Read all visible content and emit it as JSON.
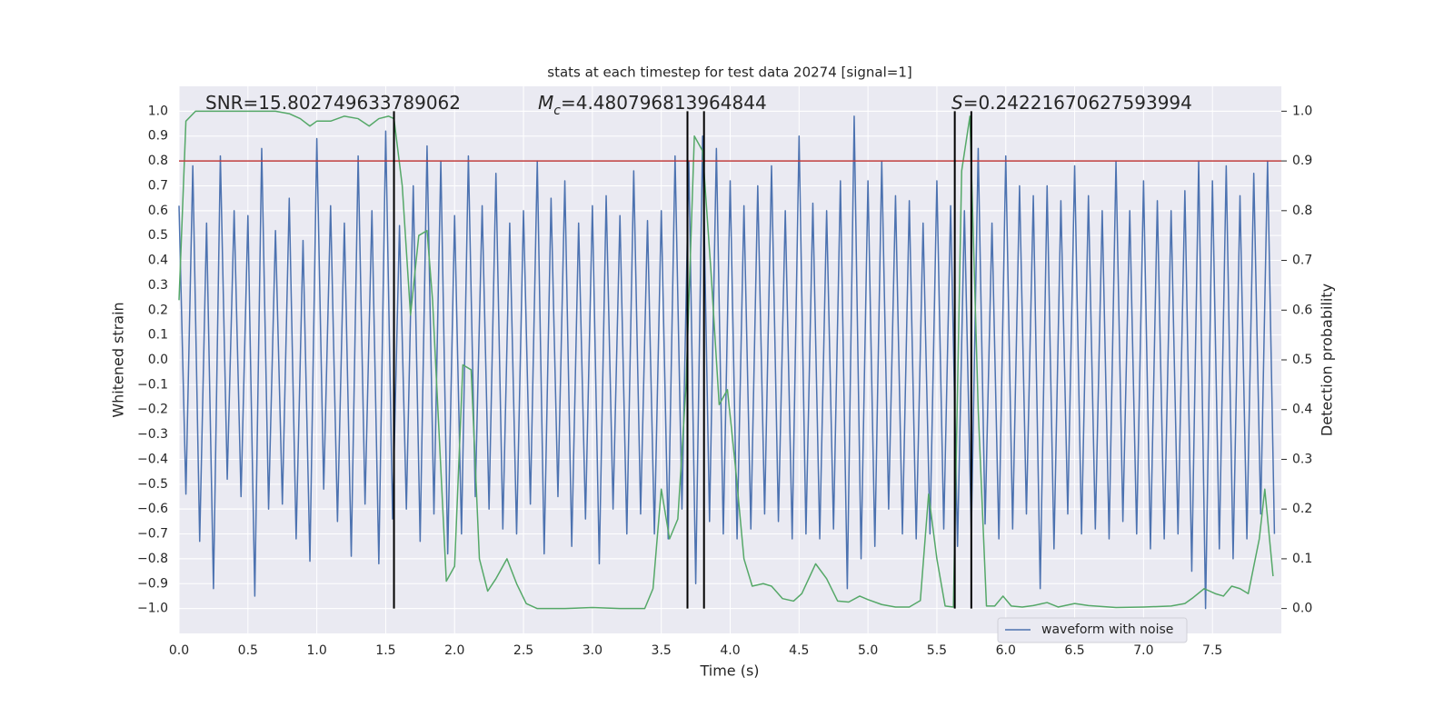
{
  "chart_data": {
    "type": "line",
    "title": "stats at each timestep for test data 20274 [signal=1]",
    "xlabel": "Time (s)",
    "ylabel": "Whitened strain",
    "y2label": "Detection probability",
    "annotations": [
      {
        "text": "SNR=15.802749633789062"
      },
      {
        "symbol": "M",
        "sub": "c",
        "text": "=4.480796813964844"
      },
      {
        "symbol": "S",
        "text": "=0.24221670627593994"
      }
    ],
    "xlim": [
      0,
      8.0
    ],
    "xticks": [
      {
        "value": 0,
        "label": "0.0"
      },
      0.5,
      {
        "value": 1,
        "label": "1.0"
      },
      1.5,
      {
        "value": 2,
        "label": "2.0"
      },
      2.5,
      {
        "value": 3,
        "label": "3.0"
      },
      3.5,
      {
        "value": 4,
        "label": "4.0"
      },
      4.5,
      {
        "value": 5,
        "label": "5.0"
      },
      5.5,
      {
        "value": 6,
        "label": "6.0"
      },
      6.5,
      {
        "value": 7,
        "label": "7.0"
      },
      7.5
    ],
    "ylim": [
      -1.1,
      1.1
    ],
    "yticks": [
      {
        "value": -1.0,
        "label": "−1.0"
      },
      {
        "value": -0.9,
        "label": "−0.9"
      },
      {
        "value": -0.8,
        "label": "−0.8"
      },
      {
        "value": -0.7,
        "label": "−0.7"
      },
      {
        "value": -0.6,
        "label": "−0.6"
      },
      {
        "value": -0.5,
        "label": "−0.5"
      },
      {
        "value": -0.4,
        "label": "−0.4"
      },
      {
        "value": -0.3,
        "label": "−0.3"
      },
      {
        "value": -0.2,
        "label": "−0.2"
      },
      {
        "value": -0.1,
        "label": "−0.1"
      },
      {
        "value": 0,
        "label": "0.0"
      },
      0.1,
      0.2,
      0.3,
      0.4,
      0.5,
      0.6,
      0.7,
      0.8,
      0.9,
      {
        "value": 1.0,
        "label": "1.0"
      }
    ],
    "y2lim": [
      -0.05,
      1.05
    ],
    "y2ticks": [
      {
        "value": 0,
        "label": "0.0"
      },
      0.1,
      0.2,
      0.3,
      0.4,
      0.5,
      0.6,
      0.7,
      0.8,
      0.9,
      {
        "value": 1.0,
        "label": "1.0"
      }
    ],
    "grid": true,
    "legend": "lower right",
    "series": [
      {
        "name": "waveform with noise",
        "color": "#4c72b0",
        "x": [
          0,
          0.05,
          0.1,
          0.15,
          0.2,
          0.25,
          0.3,
          0.35,
          0.4,
          0.45,
          0.5,
          0.55,
          0.6,
          0.65,
          0.7,
          0.75,
          0.8,
          0.85,
          0.9,
          0.95,
          1,
          1.05,
          1.1,
          1.15,
          1.2,
          1.25,
          1.3,
          1.35,
          1.4,
          1.45,
          1.5,
          1.55,
          1.6,
          1.65,
          1.7,
          1.75,
          1.8,
          1.85,
          1.9,
          1.95,
          2,
          2.05,
          2.1,
          2.15,
          2.2,
          2.25,
          2.3,
          2.35,
          2.4,
          2.45,
          2.5,
          2.55,
          2.6,
          2.65,
          2.7,
          2.75,
          2.8,
          2.85,
          2.9,
          2.95,
          3,
          3.05,
          3.1,
          3.15,
          3.2,
          3.25,
          3.3,
          3.35,
          3.4,
          3.45,
          3.5,
          3.55,
          3.6,
          3.65,
          3.7,
          3.75,
          3.8,
          3.85,
          3.9,
          3.95,
          4,
          4.05,
          4.1,
          4.15,
          4.2,
          4.25,
          4.3,
          4.35,
          4.4,
          4.45,
          4.5,
          4.55,
          4.6,
          4.65,
          4.7,
          4.75,
          4.8,
          4.85,
          4.9,
          4.95,
          5,
          5.05,
          5.1,
          5.15,
          5.2,
          5.25,
          5.3,
          5.35,
          5.4,
          5.45,
          5.5,
          5.55,
          5.6,
          5.65,
          5.7,
          5.75,
          5.8,
          5.85,
          5.9,
          5.95,
          6,
          6.05,
          6.1,
          6.15,
          6.2,
          6.25,
          6.3,
          6.35,
          6.4,
          6.45,
          6.5,
          6.55,
          6.6,
          6.65,
          6.7,
          6.75,
          6.8,
          6.85,
          6.9,
          6.95,
          7,
          7.05,
          7.1,
          7.15,
          7.2,
          7.25,
          7.3,
          7.35,
          7.4,
          7.45,
          7.5,
          7.55,
          7.6,
          7.65,
          7.7,
          7.75,
          7.8,
          7.85,
          7.9,
          7.95
        ],
        "values": [
          0.62,
          -0.54,
          0.78,
          -0.73,
          0.55,
          -0.92,
          0.82,
          -0.48,
          0.6,
          -0.55,
          0.58,
          -0.95,
          0.85,
          -0.6,
          0.52,
          -0.58,
          0.65,
          -0.72,
          0.48,
          -0.81,
          0.89,
          -0.52,
          0.62,
          -0.65,
          0.55,
          -0.79,
          0.82,
          -0.58,
          0.6,
          -0.82,
          0.92,
          -0.64,
          0.54,
          -0.6,
          0.7,
          -0.73,
          0.86,
          -0.62,
          0.8,
          -0.78,
          0.58,
          -0.7,
          0.82,
          -0.55,
          0.62,
          -0.6,
          0.75,
          -0.68,
          0.55,
          -0.7,
          0.6,
          -0.58,
          0.8,
          -0.78,
          0.65,
          -0.55,
          0.72,
          -0.75,
          0.55,
          -0.64,
          0.62,
          -0.82,
          0.66,
          -0.6,
          0.58,
          -0.7,
          0.76,
          -0.62,
          0.56,
          -0.7,
          0.6,
          -0.72,
          0.82,
          -0.6,
          0.8,
          -0.9,
          0.9,
          -0.65,
          0.85,
          -0.7,
          0.72,
          -0.72,
          0.62,
          -0.68,
          0.7,
          -0.62,
          0.78,
          -0.65,
          0.6,
          -0.72,
          0.9,
          -0.7,
          0.63,
          -0.72,
          0.6,
          -0.68,
          0.72,
          -0.92,
          0.98,
          -0.8,
          0.72,
          -0.75,
          0.8,
          -0.6,
          0.66,
          -0.7,
          0.64,
          -0.72,
          0.55,
          -0.7,
          0.72,
          -0.68,
          0.62,
          -0.75,
          0.6,
          -0.7,
          0.85,
          -0.66,
          0.55,
          -0.72,
          0.82,
          -0.68,
          0.7,
          -0.62,
          0.66,
          -0.92,
          0.7,
          -0.76,
          0.64,
          -0.62,
          0.78,
          -0.7,
          0.66,
          -0.68,
          0.6,
          -0.72,
          0.8,
          -0.65,
          0.6,
          -0.7,
          0.72,
          -0.76,
          0.64,
          -0.72,
          0.6,
          -0.7,
          0.68,
          -0.85,
          0.8,
          -1.0,
          0.72,
          -0.76,
          0.78,
          -0.8,
          0.66,
          -0.72,
          0.75,
          -0.62,
          0.8,
          -0.7
        ]
      },
      {
        "color": "#55a868",
        "axis": "y2",
        "x": [
          0,
          0.05,
          0.12,
          0.3,
          0.5,
          0.7,
          0.8,
          0.88,
          0.95,
          1.0,
          1.1,
          1.2,
          1.3,
          1.38,
          1.45,
          1.52,
          1.56,
          1.62,
          1.68,
          1.74,
          1.8,
          1.84,
          1.94,
          2.0,
          2.06,
          2.12,
          2.18,
          2.24,
          2.3,
          2.38,
          2.45,
          2.52,
          2.6,
          2.8,
          3.0,
          3.2,
          3.38,
          3.44,
          3.5,
          3.56,
          3.62,
          3.68,
          3.74,
          3.8,
          3.86,
          3.92,
          3.98,
          4.04,
          4.1,
          4.16,
          4.24,
          4.3,
          4.38,
          4.46,
          4.52,
          4.62,
          4.7,
          4.78,
          4.86,
          4.94,
          5.0,
          5.1,
          5.2,
          5.3,
          5.38,
          5.44,
          5.5,
          5.56,
          5.62,
          5.68,
          5.74,
          5.8,
          5.86,
          5.92,
          5.98,
          6.04,
          6.12,
          6.2,
          6.3,
          6.38,
          6.5,
          6.6,
          6.8,
          7.0,
          7.2,
          7.3,
          7.36,
          7.44,
          7.52,
          7.58,
          7.64,
          7.7,
          7.76,
          7.84,
          7.88,
          7.94
        ],
        "values": [
          0.62,
          0.98,
          1.0,
          1.0,
          1.0,
          1.0,
          0.995,
          0.985,
          0.97,
          0.98,
          0.98,
          0.99,
          0.985,
          0.97,
          0.985,
          0.99,
          0.985,
          0.85,
          0.59,
          0.75,
          0.76,
          0.62,
          0.055,
          0.085,
          0.49,
          0.48,
          0.1,
          0.035,
          0.06,
          0.1,
          0.05,
          0.01,
          0.0,
          0.0,
          0.002,
          0.0,
          0.0,
          0.04,
          0.24,
          0.14,
          0.18,
          0.45,
          0.95,
          0.92,
          0.68,
          0.41,
          0.44,
          0.28,
          0.1,
          0.045,
          0.05,
          0.045,
          0.02,
          0.015,
          0.03,
          0.09,
          0.06,
          0.015,
          0.013,
          0.025,
          0.018,
          0.008,
          0.003,
          0.003,
          0.016,
          0.23,
          0.1,
          0.005,
          0.003,
          0.88,
          0.99,
          0.4,
          0.005,
          0.005,
          0.025,
          0.005,
          0.003,
          0.006,
          0.012,
          0.003,
          0.01,
          0.006,
          0.002,
          0.003,
          0.005,
          0.01,
          0.022,
          0.04,
          0.03,
          0.025,
          0.045,
          0.04,
          0.03,
          0.14,
          0.24,
          0.065
        ]
      }
    ],
    "threshold": {
      "value": 0.9,
      "axis": "y2",
      "color": "#c03d3e"
    },
    "vlines": {
      "x": [
        1.56,
        3.69,
        3.81,
        5.63,
        5.75
      ],
      "ymin": -1.0,
      "ymax": 1.0,
      "color": "#000000"
    }
  }
}
